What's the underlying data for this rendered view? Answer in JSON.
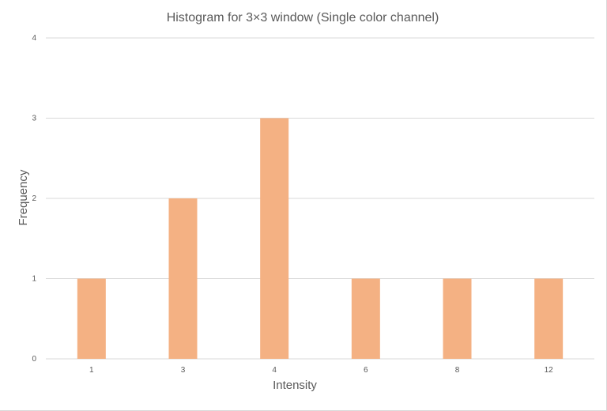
{
  "chart_data": {
    "type": "bar",
    "title": "Histogram for 3×3 window (Single color channel)",
    "xlabel": "Intensity",
    "ylabel": "Frequency",
    "categories": [
      "1",
      "3",
      "4",
      "6",
      "8",
      "12"
    ],
    "values": [
      1,
      2,
      3,
      1,
      1,
      1
    ],
    "ylim": [
      0,
      4
    ],
    "yticks": [
      "0",
      "1",
      "2",
      "3",
      "4"
    ],
    "grid": true,
    "legend": "none",
    "colors": {
      "bar": "#f4b183",
      "grid": "#d9d9d9",
      "text": "#595959"
    }
  }
}
